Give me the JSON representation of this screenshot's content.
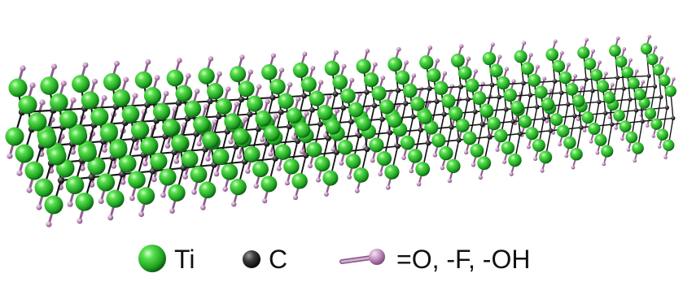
{
  "legend": {
    "items": [
      {
        "label": "Ti",
        "symbol": "green-sphere",
        "color": "#2fc42f"
      },
      {
        "label": "C",
        "symbol": "dark-sphere",
        "color": "#3a3a3a"
      },
      {
        "label": "=O, -F, -OH",
        "symbol": "stick-ball",
        "color": "#c9a2c7"
      }
    ]
  },
  "colors": {
    "ti": "#2fc42f",
    "ti_dark": "#0a6e12",
    "ti_light": "#b8f7b4",
    "carbon": "#1e1e1e",
    "bond": "#151515",
    "termination": "#c9a2c7",
    "termination_dark": "#8d5f8b",
    "background": "#ffffff"
  }
}
